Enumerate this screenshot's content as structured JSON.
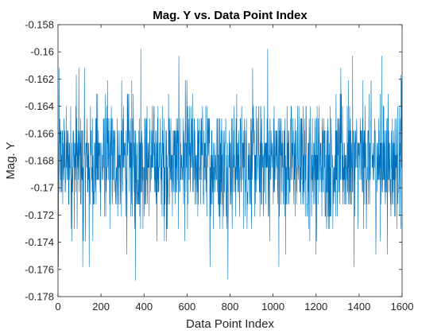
{
  "chart_data": {
    "type": "line",
    "title": "Mag. Y vs. Data Point Index",
    "xlabel": "Data Point Index",
    "ylabel": "Mag. Y",
    "xlim": [
      0,
      1600
    ],
    "ylim": [
      -0.178,
      -0.158
    ],
    "x_ticks": [
      0,
      200,
      400,
      600,
      800,
      1000,
      1200,
      1400,
      1600
    ],
    "y_ticks": [
      -0.158,
      -0.16,
      -0.162,
      -0.164,
      -0.166,
      -0.168,
      -0.17,
      -0.172,
      -0.174,
      -0.176,
      -0.178
    ],
    "x_tick_labels": [
      "0",
      "200",
      "400",
      "600",
      "800",
      "1000",
      "1200",
      "1400",
      "1600"
    ],
    "y_tick_labels": [
      "-0.158",
      "-0.16",
      "-0.162",
      "-0.164",
      "-0.166",
      "-0.168",
      "-0.17",
      "-0.172",
      "-0.174",
      "-0.176",
      "-0.178"
    ],
    "grid": false,
    "series": [
      {
        "color": "#0072bd",
        "x_start": 1,
        "x_step": 1,
        "count": 1600,
        "levels": [
          -0.1767,
          -0.1758,
          -0.1749,
          -0.1739,
          -0.173,
          -0.1721,
          -0.1712,
          -0.1703,
          -0.1694,
          -0.1685,
          -0.1676,
          -0.1667,
          -0.1658,
          -0.1649,
          -0.164,
          -0.1631,
          -0.1621,
          -0.1612,
          -0.1603,
          -0.1598
        ],
        "level_weights": [
          1,
          2,
          4,
          9,
          20,
          45,
          90,
          140,
          180,
          200,
          200,
          180,
          140,
          90,
          45,
          20,
          9,
          4,
          2,
          1
        ],
        "extremes": [
          {
            "x": 360,
            "y": -0.1768
          },
          {
            "x": 385,
            "y": -0.1598
          },
          {
            "x": 975,
            "y": -0.1598
          },
          {
            "x": 85,
            "y": -0.1617
          },
          {
            "x": 115,
            "y": -0.1758
          },
          {
            "x": 145,
            "y": -0.1758
          },
          {
            "x": 1595,
            "y": -0.1617
          },
          {
            "x": 1505,
            "y": -0.1603
          },
          {
            "x": 2,
            "y": -0.1758
          }
        ]
      }
    ]
  }
}
